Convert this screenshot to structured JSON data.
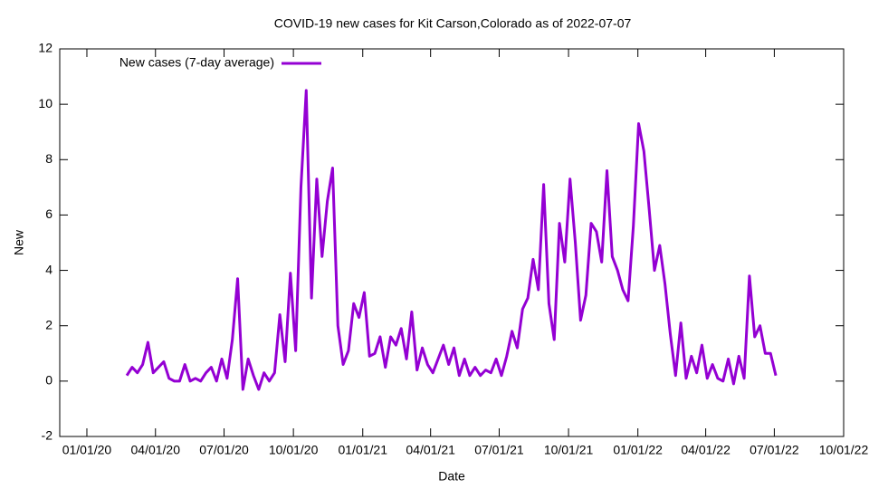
{
  "chart_data": {
    "type": "line",
    "title": "COVID-19 new cases for Kit Carson,Colorado as of 2022-07-07",
    "xlabel": "Date",
    "ylabel": "New",
    "legend": "top-left",
    "x": [
      "2020-02-23",
      "2020-03-01",
      "2020-03-08",
      "2020-03-15",
      "2020-03-22",
      "2020-03-29",
      "2020-04-05",
      "2020-04-12",
      "2020-04-19",
      "2020-04-26",
      "2020-05-03",
      "2020-05-10",
      "2020-05-17",
      "2020-05-24",
      "2020-05-31",
      "2020-06-07",
      "2020-06-14",
      "2020-06-21",
      "2020-06-28",
      "2020-07-05",
      "2020-07-12",
      "2020-07-19",
      "2020-07-26",
      "2020-08-02",
      "2020-08-09",
      "2020-08-16",
      "2020-08-23",
      "2020-08-30",
      "2020-09-06",
      "2020-09-13",
      "2020-09-20",
      "2020-09-27",
      "2020-10-04",
      "2020-10-11",
      "2020-10-18",
      "2020-10-25",
      "2020-11-01",
      "2020-11-08",
      "2020-11-15",
      "2020-11-22",
      "2020-11-29",
      "2020-12-06",
      "2020-12-13",
      "2020-12-20",
      "2020-12-27",
      "2021-01-03",
      "2021-01-10",
      "2021-01-17",
      "2021-01-24",
      "2021-01-31",
      "2021-02-07",
      "2021-02-14",
      "2021-02-21",
      "2021-02-28",
      "2021-03-07",
      "2021-03-14",
      "2021-03-21",
      "2021-03-28",
      "2021-04-04",
      "2021-04-11",
      "2021-04-18",
      "2021-04-25",
      "2021-05-02",
      "2021-05-09",
      "2021-05-16",
      "2021-05-23",
      "2021-05-30",
      "2021-06-06",
      "2021-06-13",
      "2021-06-20",
      "2021-06-27",
      "2021-07-04",
      "2021-07-11",
      "2021-07-18",
      "2021-07-25",
      "2021-08-01",
      "2021-08-08",
      "2021-08-15",
      "2021-08-22",
      "2021-08-29",
      "2021-09-05",
      "2021-09-12",
      "2021-09-19",
      "2021-09-26",
      "2021-10-03",
      "2021-10-10",
      "2021-10-17",
      "2021-10-24",
      "2021-10-31",
      "2021-11-07",
      "2021-11-14",
      "2021-11-21",
      "2021-11-28",
      "2021-12-05",
      "2021-12-12",
      "2021-12-19",
      "2021-12-26",
      "2022-01-02",
      "2022-01-09",
      "2022-01-16",
      "2022-01-23",
      "2022-01-30",
      "2022-02-06",
      "2022-02-13",
      "2022-02-20",
      "2022-02-27",
      "2022-03-06",
      "2022-03-13",
      "2022-03-20",
      "2022-03-27",
      "2022-04-03",
      "2022-04-10",
      "2022-04-17",
      "2022-04-24",
      "2022-05-01",
      "2022-05-08",
      "2022-05-15",
      "2022-05-22",
      "2022-05-29",
      "2022-06-05",
      "2022-06-12",
      "2022-06-19",
      "2022-06-26",
      "2022-07-03"
    ],
    "series": [
      {
        "name": "New cases (7-day average)",
        "color": "#9400d3",
        "values": [
          0.2,
          0.5,
          0.3,
          0.6,
          1.4,
          0.3,
          0.5,
          0.7,
          0.1,
          0.0,
          0.0,
          0.6,
          0.0,
          0.1,
          0.0,
          0.3,
          0.5,
          0.0,
          0.8,
          0.1,
          1.5,
          3.7,
          -0.3,
          0.8,
          0.2,
          -0.3,
          0.3,
          0.0,
          0.3,
          2.4,
          0.7,
          3.9,
          1.1,
          7.0,
          10.5,
          3.0,
          7.3,
          4.5,
          6.5,
          7.7,
          2.0,
          0.6,
          1.1,
          2.8,
          2.3,
          3.2,
          0.9,
          1.0,
          1.6,
          0.5,
          1.6,
          1.3,
          1.9,
          0.8,
          2.5,
          0.4,
          1.2,
          0.6,
          0.3,
          0.8,
          1.3,
          0.6,
          1.2,
          0.2,
          0.8,
          0.2,
          0.5,
          0.2,
          0.4,
          0.3,
          0.8,
          0.2,
          0.9,
          1.8,
          1.2,
          2.6,
          3.0,
          4.4,
          3.3,
          7.1,
          2.8,
          1.5,
          5.7,
          4.3,
          7.3,
          5.0,
          2.2,
          3.1,
          5.7,
          5.4,
          4.3,
          7.6,
          4.5,
          4.0,
          3.3,
          2.9,
          5.6,
          9.3,
          8.3,
          6.2,
          4.0,
          4.9,
          3.5,
          1.7,
          0.2,
          2.1,
          0.1,
          0.9,
          0.3,
          1.3,
          0.1,
          0.6,
          0.1,
          0.0,
          0.8,
          -0.1,
          0.9,
          0.1,
          3.8,
          1.6,
          2.0,
          1.0,
          1.0,
          0.2
        ]
      }
    ],
    "xlim": [
      "2019-11-26",
      "2022-10-01"
    ],
    "xticks": [
      {
        "value": "2020-01-01",
        "label": "01/01/20"
      },
      {
        "value": "2020-04-01",
        "label": "04/01/20"
      },
      {
        "value": "2020-07-01",
        "label": "07/01/20"
      },
      {
        "value": "2020-10-01",
        "label": "10/01/20"
      },
      {
        "value": "2021-01-01",
        "label": "01/01/21"
      },
      {
        "value": "2021-04-01",
        "label": "04/01/21"
      },
      {
        "value": "2021-07-01",
        "label": "07/01/21"
      },
      {
        "value": "2021-10-01",
        "label": "10/01/21"
      },
      {
        "value": "2022-01-01",
        "label": "01/01/22"
      },
      {
        "value": "2022-04-01",
        "label": "04/01/22"
      },
      {
        "value": "2022-07-01",
        "label": "07/01/22"
      },
      {
        "value": "2022-10-01",
        "label": "10/01/22"
      }
    ],
    "ylim": [
      -2,
      12
    ],
    "yticks": [
      -2,
      0,
      2,
      4,
      6,
      8,
      10,
      12
    ]
  }
}
